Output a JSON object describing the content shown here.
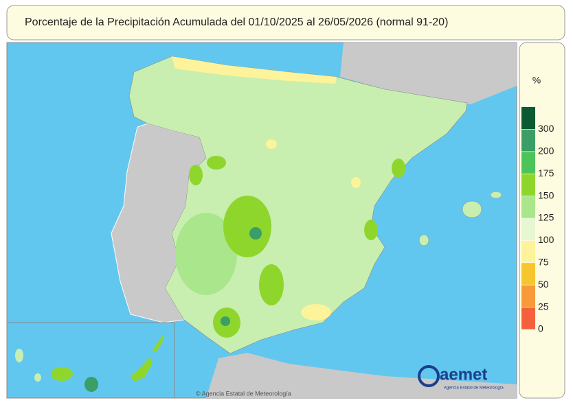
{
  "header": {
    "title": "Porcentaje de la Precipitación Acumulada del 01/10/2025 al 26/05/2026 (normal 91-20)"
  },
  "legend": {
    "unit": "%",
    "ticks": [
      0,
      25,
      50,
      75,
      100,
      125,
      150,
      175,
      200,
      300
    ],
    "colors": [
      "#f4603c",
      "#f89a3a",
      "#f7c52e",
      "#fdf39a",
      "#e6f7d2",
      "#a9e68c",
      "#8fd62c",
      "#4cc45a",
      "#3a9e66",
      "#0b5a33"
    ]
  },
  "map": {
    "credit": "© Agencia Estatal de Meteorología"
  },
  "logo": {
    "name": "aemet",
    "subtitle": "Agencia Estatal de Meteorología"
  }
}
